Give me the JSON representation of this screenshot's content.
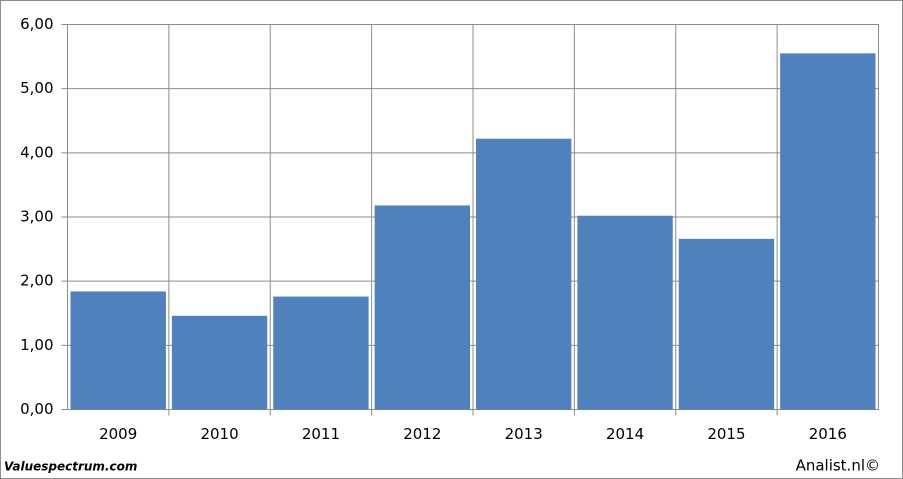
{
  "chart_data": {
    "type": "bar",
    "categories": [
      "2009",
      "2010",
      "2011",
      "2012",
      "2013",
      "2014",
      "2015",
      "2016"
    ],
    "values": [
      1.84,
      1.46,
      1.76,
      3.18,
      4.22,
      3.02,
      2.66,
      5.55
    ],
    "color": "#4f81bd",
    "ylim": [
      0,
      6
    ],
    "yticks": [
      {
        "value": 0,
        "label": "0,00"
      },
      {
        "value": 1,
        "label": "1,00"
      },
      {
        "value": 2,
        "label": "2,00"
      },
      {
        "value": 3,
        "label": "3,00"
      },
      {
        "value": 4,
        "label": "4,00"
      },
      {
        "value": 5,
        "label": "5,00"
      },
      {
        "value": 6,
        "label": "6,00"
      }
    ],
    "grid": true,
    "footer_left": "Valuespectrum.com",
    "footer_right": "Analist.nl©"
  }
}
